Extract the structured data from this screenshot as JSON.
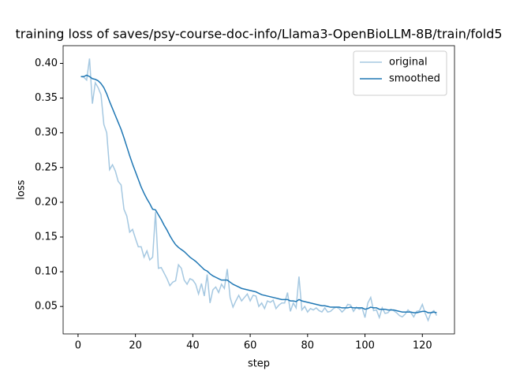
{
  "chart_data": {
    "type": "line",
    "title": "training loss of saves/psy-course-doc-info/Llama3-OpenBioLLM-8B/train/fold5",
    "xlabel": "step",
    "ylabel": "loss",
    "x": [
      1,
      2,
      3,
      4,
      5,
      6,
      7,
      8,
      9,
      10,
      11,
      12,
      13,
      14,
      15,
      16,
      17,
      18,
      19,
      20,
      21,
      22,
      23,
      24,
      25,
      26,
      27,
      28,
      29,
      30,
      31,
      32,
      33,
      34,
      35,
      36,
      37,
      38,
      39,
      40,
      41,
      42,
      43,
      44,
      45,
      46,
      47,
      48,
      49,
      50,
      51,
      52,
      53,
      54,
      55,
      56,
      57,
      58,
      59,
      60,
      61,
      62,
      63,
      64,
      65,
      66,
      67,
      68,
      69,
      70,
      71,
      72,
      73,
      74,
      75,
      76,
      77,
      78,
      79,
      80,
      81,
      82,
      83,
      84,
      85,
      86,
      87,
      88,
      89,
      90,
      91,
      92,
      93,
      94,
      95,
      96,
      97,
      98,
      99,
      100,
      101,
      102,
      103,
      104,
      105,
      106,
      107,
      108,
      109,
      110,
      111,
      112,
      113,
      114,
      115,
      116,
      117,
      118,
      119,
      120,
      121,
      122,
      123,
      124,
      125
    ],
    "series": [
      {
        "name": "original",
        "color": "#a5c8e1",
        "values": [
          0.381,
          0.38,
          0.376,
          0.407,
          0.342,
          0.372,
          0.365,
          0.355,
          0.312,
          0.3,
          0.247,
          0.254,
          0.245,
          0.23,
          0.225,
          0.19,
          0.18,
          0.157,
          0.161,
          0.148,
          0.136,
          0.136,
          0.121,
          0.13,
          0.117,
          0.121,
          0.186,
          0.105,
          0.106,
          0.098,
          0.09,
          0.08,
          0.085,
          0.087,
          0.11,
          0.105,
          0.088,
          0.082,
          0.09,
          0.088,
          0.082,
          0.068,
          0.083,
          0.065,
          0.096,
          0.055,
          0.074,
          0.078,
          0.07,
          0.082,
          0.076,
          0.104,
          0.063,
          0.049,
          0.058,
          0.066,
          0.058,
          0.063,
          0.068,
          0.058,
          0.066,
          0.065,
          0.05,
          0.055,
          0.047,
          0.058,
          0.056,
          0.059,
          0.047,
          0.052,
          0.055,
          0.055,
          0.07,
          0.043,
          0.055,
          0.048,
          0.093,
          0.045,
          0.05,
          0.042,
          0.047,
          0.045,
          0.048,
          0.044,
          0.042,
          0.048,
          0.042,
          0.043,
          0.047,
          0.049,
          0.047,
          0.042,
          0.046,
          0.053,
          0.052,
          0.043,
          0.049,
          0.046,
          0.048,
          0.034,
          0.055,
          0.063,
          0.044,
          0.045,
          0.034,
          0.048,
          0.04,
          0.041,
          0.046,
          0.044,
          0.041,
          0.037,
          0.035,
          0.039,
          0.045,
          0.041,
          0.035,
          0.043,
          0.044,
          0.053,
          0.04,
          0.03,
          0.041,
          0.044,
          0.037
        ]
      },
      {
        "name": "smoothed",
        "color": "#1f77b4",
        "values": [
          0.381,
          0.381,
          0.383,
          0.381,
          0.378,
          0.377,
          0.375,
          0.371,
          0.365,
          0.356,
          0.345,
          0.335,
          0.325,
          0.315,
          0.305,
          0.293,
          0.28,
          0.267,
          0.255,
          0.244,
          0.233,
          0.222,
          0.213,
          0.205,
          0.198,
          0.19,
          0.189,
          0.182,
          0.175,
          0.167,
          0.16,
          0.152,
          0.145,
          0.139,
          0.135,
          0.132,
          0.129,
          0.125,
          0.121,
          0.118,
          0.115,
          0.111,
          0.107,
          0.103,
          0.101,
          0.097,
          0.094,
          0.092,
          0.09,
          0.088,
          0.088,
          0.088,
          0.085,
          0.082,
          0.08,
          0.078,
          0.076,
          0.075,
          0.074,
          0.073,
          0.072,
          0.071,
          0.069,
          0.067,
          0.066,
          0.065,
          0.064,
          0.063,
          0.062,
          0.061,
          0.06,
          0.06,
          0.06,
          0.058,
          0.058,
          0.057,
          0.06,
          0.058,
          0.057,
          0.056,
          0.055,
          0.054,
          0.053,
          0.052,
          0.051,
          0.051,
          0.05,
          0.049,
          0.049,
          0.049,
          0.049,
          0.048,
          0.048,
          0.048,
          0.049,
          0.048,
          0.048,
          0.048,
          0.048,
          0.046,
          0.047,
          0.049,
          0.048,
          0.048,
          0.046,
          0.046,
          0.046,
          0.045,
          0.045,
          0.045,
          0.044,
          0.043,
          0.042,
          0.042,
          0.042,
          0.042,
          0.041,
          0.041,
          0.042,
          0.043,
          0.043,
          0.041,
          0.041,
          0.042,
          0.041
        ]
      }
    ],
    "xlim": [
      -5.2,
      131.2
    ],
    "xticks": [
      0,
      20,
      40,
      60,
      80,
      100,
      120
    ],
    "ylim": [
      0.0105,
      0.4255
    ],
    "yticks": [
      0.05,
      {
        "value": 0.1,
        "label": "0.10"
      },
      0.15,
      {
        "value": 0.2,
        "label": "0.20"
      },
      0.25,
      {
        "value": 0.3,
        "label": "0.30"
      },
      0.35,
      {
        "value": 0.4,
        "label": "0.40"
      }
    ],
    "legend": "upper right",
    "grid": false
  }
}
